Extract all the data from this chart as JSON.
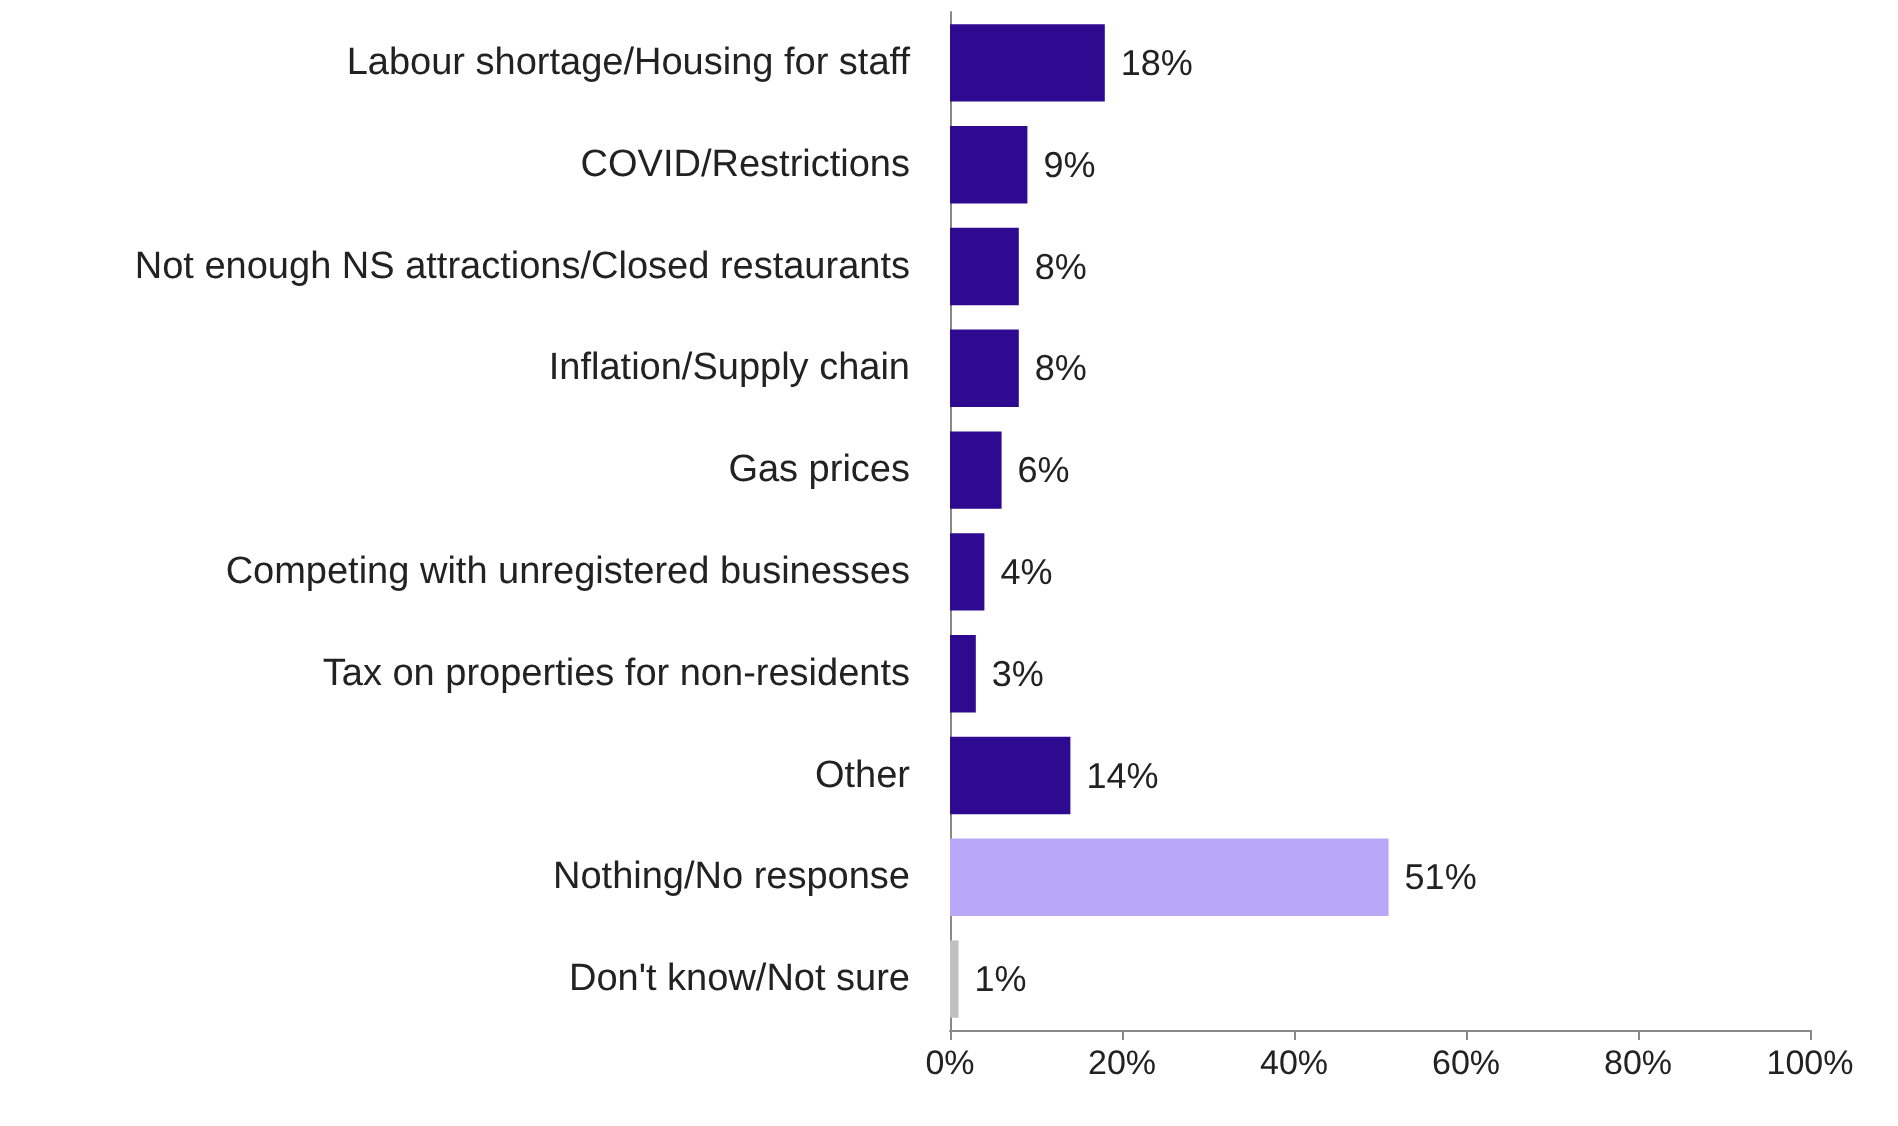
{
  "chart_data": {
    "type": "bar",
    "orientation": "horizontal",
    "categories": [
      "Labour shortage/Housing for staff",
      "COVID/Restrictions",
      "Not enough NS attractions/Closed restaurants",
      "Inflation/Supply chain",
      "Gas prices",
      "Competing with unregistered businesses",
      "Tax on properties for non-residents",
      "Other",
      "Nothing/No response",
      "Don't know/Not sure"
    ],
    "values": [
      18,
      9,
      8,
      8,
      6,
      4,
      3,
      14,
      51,
      1
    ],
    "colors": [
      "#2d0a8f",
      "#2d0a8f",
      "#2d0a8f",
      "#2d0a8f",
      "#2d0a8f",
      "#2d0a8f",
      "#2d0a8f",
      "#2d0a8f",
      "#b8a8f8",
      "#c0c0c0"
    ],
    "value_labels": [
      "18%",
      "9%",
      "8%",
      "8%",
      "6%",
      "4%",
      "3%",
      "14%",
      "51%",
      "1%"
    ],
    "xlim": [
      0,
      100
    ],
    "xticks": [
      {
        "value": 0,
        "label": "0%"
      },
      {
        "value": 20,
        "label": "20%"
      },
      {
        "value": 40,
        "label": "40%"
      },
      {
        "value": 60,
        "label": "60%"
      },
      {
        "value": 80,
        "label": "80%"
      },
      {
        "value": 100,
        "label": "100%"
      }
    ],
    "grid": false
  }
}
